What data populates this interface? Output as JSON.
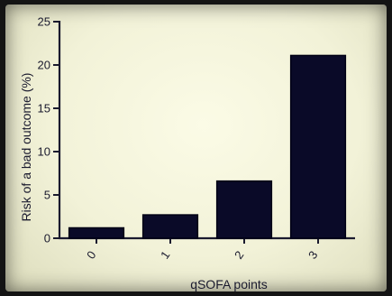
{
  "chart_data": {
    "type": "bar",
    "categories": [
      "0",
      "1",
      "2",
      "3"
    ],
    "values": [
      1.2,
      2.7,
      6.6,
      21.1
    ],
    "xlabel": "qSOFA points",
    "ylabel": "Risk of a bad outcome (%)",
    "ylim": [
      0,
      25
    ],
    "yticks": [
      "0",
      "5",
      "10",
      "15",
      "20",
      "25"
    ],
    "grid": false,
    "bar_color": "#0a0a28"
  }
}
